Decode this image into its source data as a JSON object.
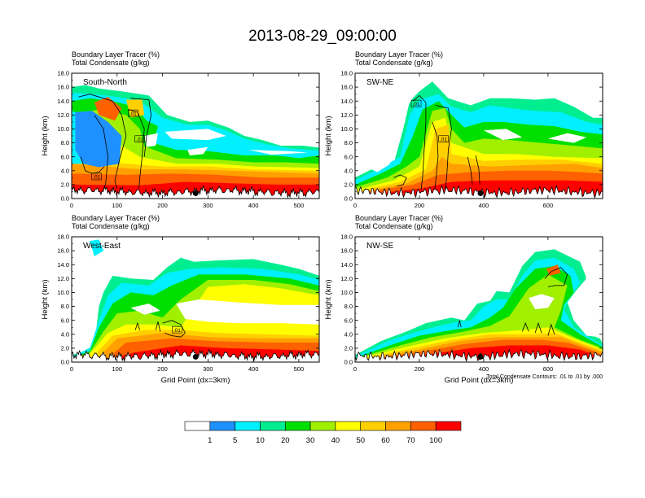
{
  "title": "2013-08-29_09:00:00",
  "colors": {
    "fill_levels": [
      "#ffffff",
      "#1e90ff",
      "#00f0ff",
      "#00ee90",
      "#00e000",
      "#a0f000",
      "#ffff00",
      "#ffd000",
      "#ffa000",
      "#ff6000",
      "#ff0000"
    ],
    "contour": "#000000"
  },
  "chart_data": [
    {
      "type": "heatmap",
      "panel": "South-North",
      "header_line1": "Boundary Layer Tracer   (%)",
      "header_line2": "Total Condensate   (g/kg)",
      "xlabel": "",
      "ylabel": "Height (km)",
      "xlim": [
        0,
        545
      ],
      "ylim": [
        0,
        18
      ],
      "xticks": [
        "0",
        "100",
        "200",
        "300",
        "400",
        "500"
      ],
      "xtick_values": [
        0,
        100,
        200,
        300,
        400,
        500
      ],
      "yticks": [
        "0.0",
        "2.0",
        "4.0",
        "6.0",
        "8.0",
        "10.0",
        "12.0",
        "14.0",
        "16.0",
        "18.0"
      ],
      "contour_labels": [
        {
          "text": ".01",
          "x": 135,
          "y": 12.2
        },
        {
          "text": ".01",
          "x": 150,
          "y": 8.5
        },
        {
          "text": ".01",
          "x": 55,
          "y": 3.1
        }
      ],
      "marker": {
        "x": 273,
        "y": 1.0
      }
    },
    {
      "type": "heatmap",
      "panel": "SW-NE",
      "header_line1": "Boundary Layer Tracer   (%)",
      "header_line2": "Total Condensate   (g/kg)",
      "xlabel": "",
      "ylabel": "Height (km)",
      "xlim": [
        0,
        770
      ],
      "ylim": [
        0,
        18
      ],
      "xticks": [
        "0",
        "200",
        "400",
        "600"
      ],
      "xtick_values": [
        0,
        200,
        400,
        600
      ],
      "yticks": [
        "0.0",
        "2.0",
        "4.0",
        "6.0",
        "8.0",
        "10.0",
        "12.0",
        "14.0",
        "16.0",
        "18.0"
      ],
      "contour_labels": [
        {
          "text": ".01",
          "x": 190,
          "y": 13.6
        },
        {
          "text": ".01",
          "x": 275,
          "y": 8.5
        }
      ],
      "marker": {
        "x": 390,
        "y": 1.0
      }
    },
    {
      "type": "heatmap",
      "panel": "West-East",
      "header_line1": "Boundary Layer Tracer   (%)",
      "header_line2": "Total Condensate   (g/kg)",
      "xlabel": "Grid Point (dx=3km)",
      "ylabel": "Height (km)",
      "xlim": [
        0,
        545
      ],
      "ylim": [
        0,
        18
      ],
      "xticks": [
        "0",
        "100",
        "200",
        "300",
        "400",
        "500"
      ],
      "xtick_values": [
        0,
        100,
        200,
        300,
        400,
        500
      ],
      "yticks": [
        "0.0",
        "2.0",
        "4.0",
        "6.0",
        "8.0",
        "10.0",
        "12.0",
        "14.0",
        "16.0",
        "18.0"
      ],
      "contour_labels": [
        {
          "text": ".01",
          "x": 232,
          "y": 4.6
        }
      ],
      "marker": {
        "x": 273,
        "y": 1.0
      }
    },
    {
      "type": "heatmap",
      "panel": "NW-SE",
      "header_line1": "Boundary Layer Tracer   (%)",
      "header_line2": "Total Condensate   (g/kg)",
      "xlabel": "Grid Point (dx=3km)",
      "ylabel": "Height (km)",
      "xlim": [
        0,
        770
      ],
      "ylim": [
        0,
        18
      ],
      "xticks": [
        "0",
        "200",
        "400",
        "600"
      ],
      "xtick_values": [
        0,
        200,
        400,
        600
      ],
      "yticks": [
        "0.0",
        "2.0",
        "4.0",
        "6.0",
        "8.0",
        "10.0",
        "12.0",
        "14.0",
        "16.0",
        "18.0"
      ],
      "contour_labels": [],
      "marker": {
        "x": 390,
        "y": 1.0
      },
      "note": "Total Condensate Contours: .01 to .01 by .000"
    }
  ],
  "colorbar": {
    "labels": [
      "1",
      "5",
      "10",
      "20",
      "30",
      "40",
      "50",
      "60",
      "70",
      "100"
    ]
  }
}
